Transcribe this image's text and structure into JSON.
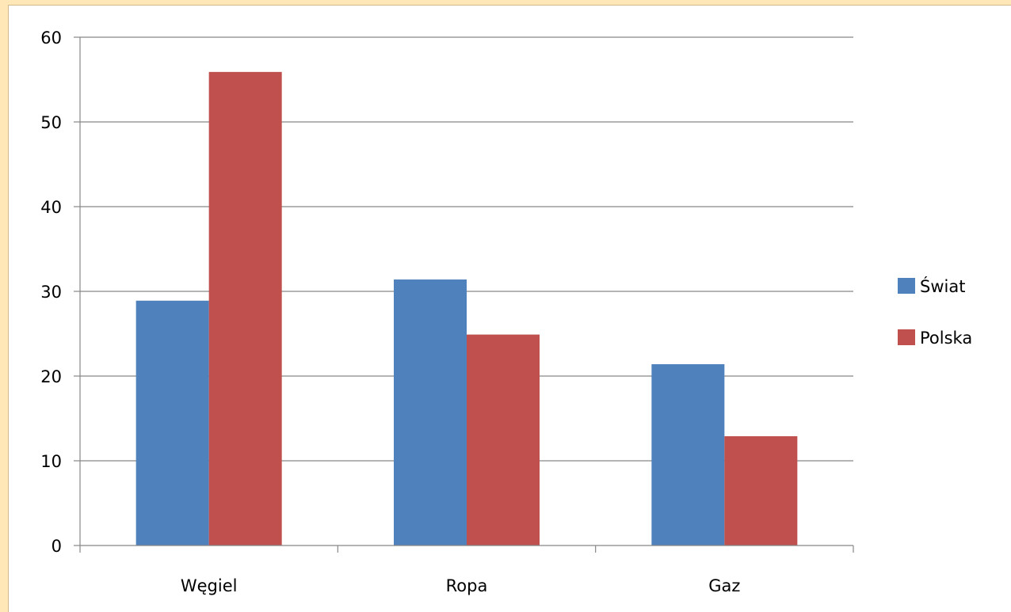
{
  "chart_data": {
    "type": "bar",
    "title": "",
    "xlabel": "",
    "ylabel": "",
    "categories": [
      "Węgiel",
      "Ropa",
      "Gaz"
    ],
    "series": [
      {
        "name": "Świat",
        "values": [
          28.9,
          31.4,
          21.4
        ],
        "color": "#4F81BD"
      },
      {
        "name": "Polska",
        "values": [
          55.9,
          24.9,
          12.9
        ],
        "color": "#C0504D"
      }
    ],
    "ylim": [
      0,
      60
    ],
    "yticks": [
      0,
      10,
      20,
      30,
      40,
      50,
      60
    ],
    "grid": true,
    "legend_position": "right"
  }
}
